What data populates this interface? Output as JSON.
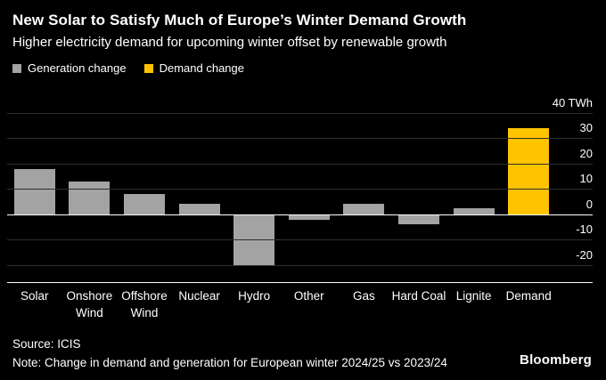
{
  "header": {
    "title": "New Solar to Satisfy Much of Europe’s Winter Demand Growth",
    "subtitle": "Higher electricity demand for upcoming winter offset by renewable growth"
  },
  "legend": [
    {
      "label": "Generation change",
      "series": "generation",
      "color": "#a3a3a3"
    },
    {
      "label": "Demand change",
      "series": "demand",
      "color": "#ffc400"
    }
  ],
  "chart_data": {
    "type": "bar",
    "title": "New Solar to Satisfy Much of Europe’s Winter Demand Growth",
    "subtitle": "Higher electricity demand for upcoming winter offset by renewable growth",
    "unit": "TWh",
    "categories": [
      "Solar",
      "Onshore Wind",
      "Offshore Wind",
      "Nuclear",
      "Hydro",
      "Other",
      "Gas",
      "Hard Coal",
      "Lignite",
      "Demand"
    ],
    "values": [
      18,
      13,
      8,
      4,
      -20,
      -2,
      4,
      -4,
      2.5,
      34
    ],
    "point_series": [
      "generation",
      "generation",
      "generation",
      "generation",
      "generation",
      "generation",
      "generation",
      "generation",
      "generation",
      "demand"
    ],
    "series_colors": {
      "generation": "#a3a3a3",
      "demand": "#ffc400"
    },
    "y_ticks": [
      {
        "value": 40,
        "label": "40 TWh"
      },
      {
        "value": 30,
        "label": "30"
      },
      {
        "value": 20,
        "label": "20"
      },
      {
        "value": 10,
        "label": "10"
      },
      {
        "value": 0,
        "label": "0"
      },
      {
        "value": -10,
        "label": "-10"
      },
      {
        "value": -20,
        "label": "-20"
      }
    ],
    "ylim": [
      -27,
      42
    ],
    "grid": "horizontal",
    "legend_position": "top-left",
    "colors": {
      "background": "#000000",
      "gridline": "#2e2e2e",
      "zero_line": "#ffffff",
      "text": "#ffffff"
    }
  },
  "footer": {
    "source": "Source: ICIS",
    "note": "Note: Change in demand and generation for European winter 2024/25 vs 2023/24",
    "logo": "Bloomberg"
  }
}
